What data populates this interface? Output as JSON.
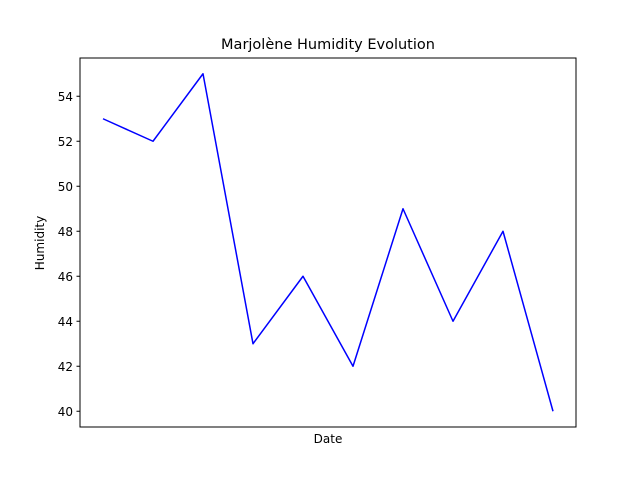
{
  "chart_data": {
    "type": "line",
    "title": "Marjolène Humidity Evolution",
    "xlabel": "Date",
    "ylabel": "Humidity",
    "x_tick_labels_shown": false,
    "ylim": [
      39.3,
      55.7
    ],
    "yticks": [
      40,
      42,
      44,
      46,
      48,
      50,
      52,
      54
    ],
    "grid": false,
    "series": [
      {
        "color": "#0000ff",
        "values": [
          53,
          52,
          55,
          43,
          46,
          42,
          49,
          44,
          48,
          40
        ]
      }
    ]
  }
}
